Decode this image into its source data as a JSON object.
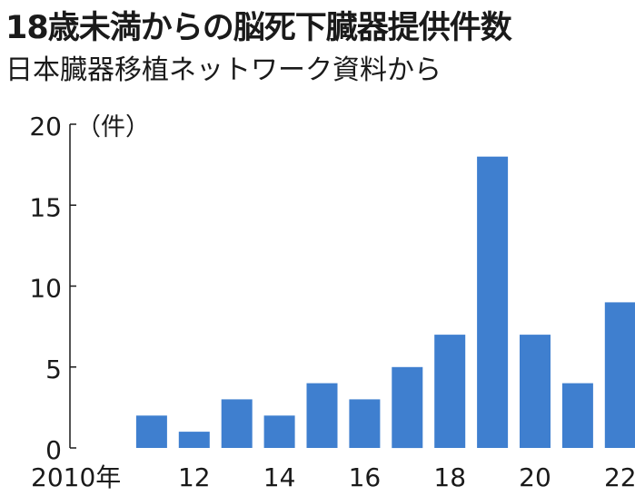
{
  "chart_data": {
    "type": "bar",
    "title": "18歳未満からの脳死下臓器提供件数",
    "subtitle": "日本臓器移植ネットワーク資料から",
    "unit": "（件）",
    "categories": [
      "2010",
      "2011",
      "2012",
      "2013",
      "2014",
      "2015",
      "2016",
      "2017",
      "2018",
      "2019",
      "2020",
      "2021",
      "2022"
    ],
    "values": [
      0,
      2,
      1,
      3,
      2,
      4,
      3,
      5,
      7,
      18,
      7,
      4,
      9
    ],
    "x_tick_labels": [
      {
        "category": "2010",
        "label": "2010年"
      },
      {
        "category": "2012",
        "label": "12"
      },
      {
        "category": "2014",
        "label": "14"
      },
      {
        "category": "2016",
        "label": "16"
      },
      {
        "category": "2018",
        "label": "18"
      },
      {
        "category": "2020",
        "label": "20"
      },
      {
        "category": "2022",
        "label": "22"
      }
    ],
    "y_ticks": [
      0,
      5,
      10,
      15,
      20
    ],
    "ylim": [
      0,
      20
    ],
    "bar_color": "#3f7fcf",
    "grid": false
  }
}
